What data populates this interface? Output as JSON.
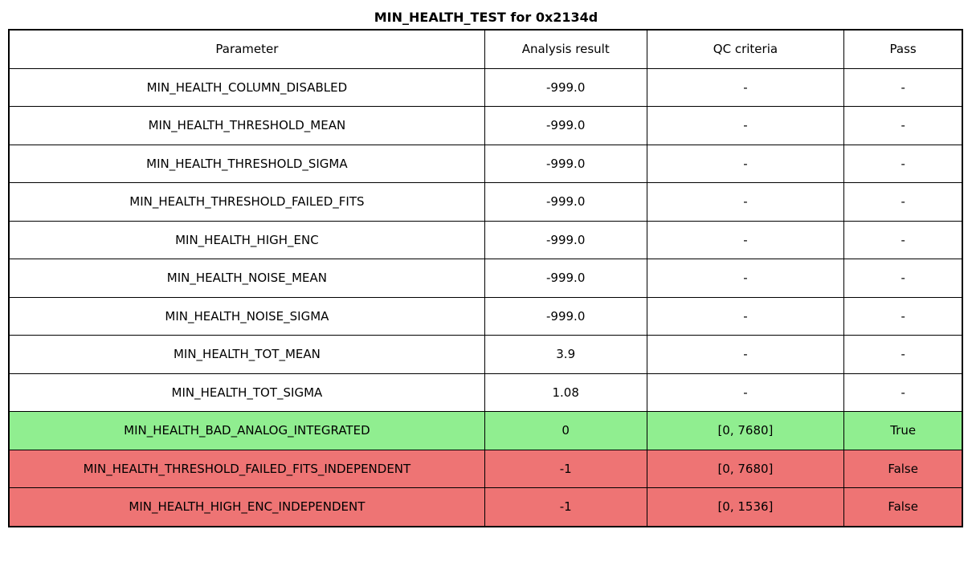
{
  "title": "MIN_HEALTH_TEST for 0x2134d",
  "chart_data": {
    "type": "table",
    "title": "MIN_HEALTH_TEST for 0x2134d",
    "columns": [
      "Parameter",
      "Analysis result",
      "QC criteria",
      "Pass"
    ],
    "rows": [
      [
        "MIN_HEALTH_COLUMN_DISABLED",
        "-999.0",
        "-",
        "-"
      ],
      [
        "MIN_HEALTH_THRESHOLD_MEAN",
        "-999.0",
        "-",
        "-"
      ],
      [
        "MIN_HEALTH_THRESHOLD_SIGMA",
        "-999.0",
        "-",
        "-"
      ],
      [
        "MIN_HEALTH_THRESHOLD_FAILED_FITS",
        "-999.0",
        "-",
        "-"
      ],
      [
        "MIN_HEALTH_HIGH_ENC",
        "-999.0",
        "-",
        "-"
      ],
      [
        "MIN_HEALTH_NOISE_MEAN",
        "-999.0",
        "-",
        "-"
      ],
      [
        "MIN_HEALTH_NOISE_SIGMA",
        "-999.0",
        "-",
        "-"
      ],
      [
        "MIN_HEALTH_TOT_MEAN",
        "3.9",
        "-",
        "-"
      ],
      [
        "MIN_HEALTH_TOT_SIGMA",
        "1.08",
        "-",
        "-"
      ],
      [
        "MIN_HEALTH_BAD_ANALOG_INTEGRATED",
        "0",
        "[0, 7680]",
        "True"
      ],
      [
        "MIN_HEALTH_THRESHOLD_FAILED_FITS_INDEPENDENT",
        "-1",
        "[0, 7680]",
        "False"
      ],
      [
        "MIN_HEALTH_HIGH_ENC_INDEPENDENT",
        "-1",
        "[0, 1536]",
        "False"
      ]
    ],
    "row_status": [
      "none",
      "none",
      "none",
      "none",
      "none",
      "none",
      "none",
      "none",
      "none",
      "pass",
      "fail",
      "fail"
    ],
    "colors": {
      "pass_row": "#90ee90",
      "fail_row": "#ee7474",
      "default_row": "#ffffff",
      "border": "#000000",
      "text": "#000000"
    },
    "layout": {
      "legend": "none",
      "grid": "table-borders"
    }
  }
}
